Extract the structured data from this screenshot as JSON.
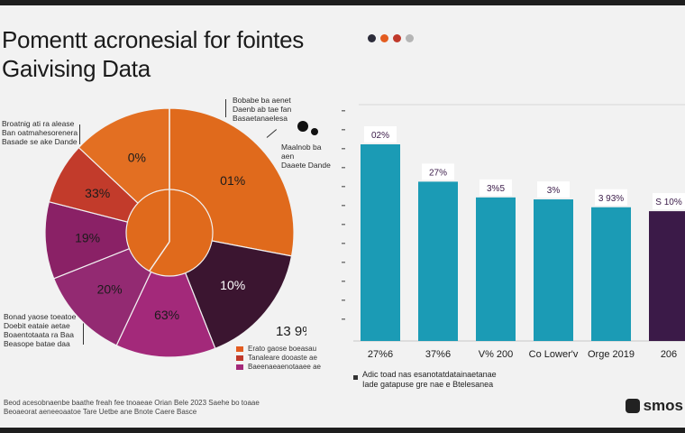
{
  "title_line1": "Pomentt acronesial for fointes",
  "title_line2": "Gaivising Data",
  "dot_colors": [
    "#2c2c3a",
    "#e35c20",
    "#c0392b",
    "#b5b5b5"
  ],
  "notes": {
    "top_left": "Broatnig ati ra alease\nBan oatmahesorenera\nBasade se ake Dande",
    "top_middle": "Bobabe ba aenet\nDaenb ab tae fan\nBasaetanaelesa",
    "top_right": "Maalnob ba aen\nDaaete Dande",
    "bottom_left": "Bonad yaose toeatoe\nDoebit eataie aetae\nBoaentotaata ra Baa\nBeasope batae daa"
  },
  "legend": [
    {
      "color": "#e35c20",
      "label": "Erato gaose boeasau"
    },
    {
      "color": "#c0392b",
      "label": "Tanaleare dooaste ae"
    },
    {
      "color": "#a3297a",
      "label": "Baeenaeaenotaaee ae"
    }
  ],
  "chart_note": "Adic toad nas esanotatdatainaetanae\nIade gatapuse gre nae e Btelesanea",
  "footer": "Beod acesobnaenbe baathe freah fee tnoaeae Orian Bele 2023 Saehe bo toaae\nBeoaeorat aeneeoaatoe Tare Uetbe ane Bnote Caere Basce",
  "logo_text": "smos",
  "chart_data": [
    {
      "type": "pie",
      "slices": [
        {
          "label": "01%",
          "value": 28,
          "color": "#e06a1c"
        },
        {
          "label": "10%",
          "value": 16,
          "color": "#3b1530"
        },
        {
          "label": "63%",
          "value": 13,
          "color": "#a3297a"
        },
        {
          "label": "20%",
          "value": 12,
          "color": "#932a72"
        },
        {
          "label": "19%",
          "value": 10,
          "color": "#8a2166"
        },
        {
          "label": "33%",
          "value": 8,
          "color": "#c23b2b"
        },
        {
          "label": "0%",
          "value": 13,
          "color": "#e36f22"
        }
      ],
      "annotation": "13 9%"
    },
    {
      "type": "bar",
      "categories": [
        "27%6",
        "37%6",
        "V% 200",
        "Co Lower'v",
        "Orge 2019",
        "206"
      ],
      "values": [
        100,
        81,
        73,
        72,
        68,
        66
      ],
      "data_labels": [
        "02%",
        "27%",
        "3%5",
        "3%",
        "3 93%",
        "S 10%"
      ],
      "colors": [
        "#1b9bb5",
        "#1b9bb5",
        "#1b9bb5",
        "#1b9bb5",
        "#1b9bb5",
        "#3b1a48"
      ],
      "ylim": [
        0,
        100
      ]
    }
  ]
}
